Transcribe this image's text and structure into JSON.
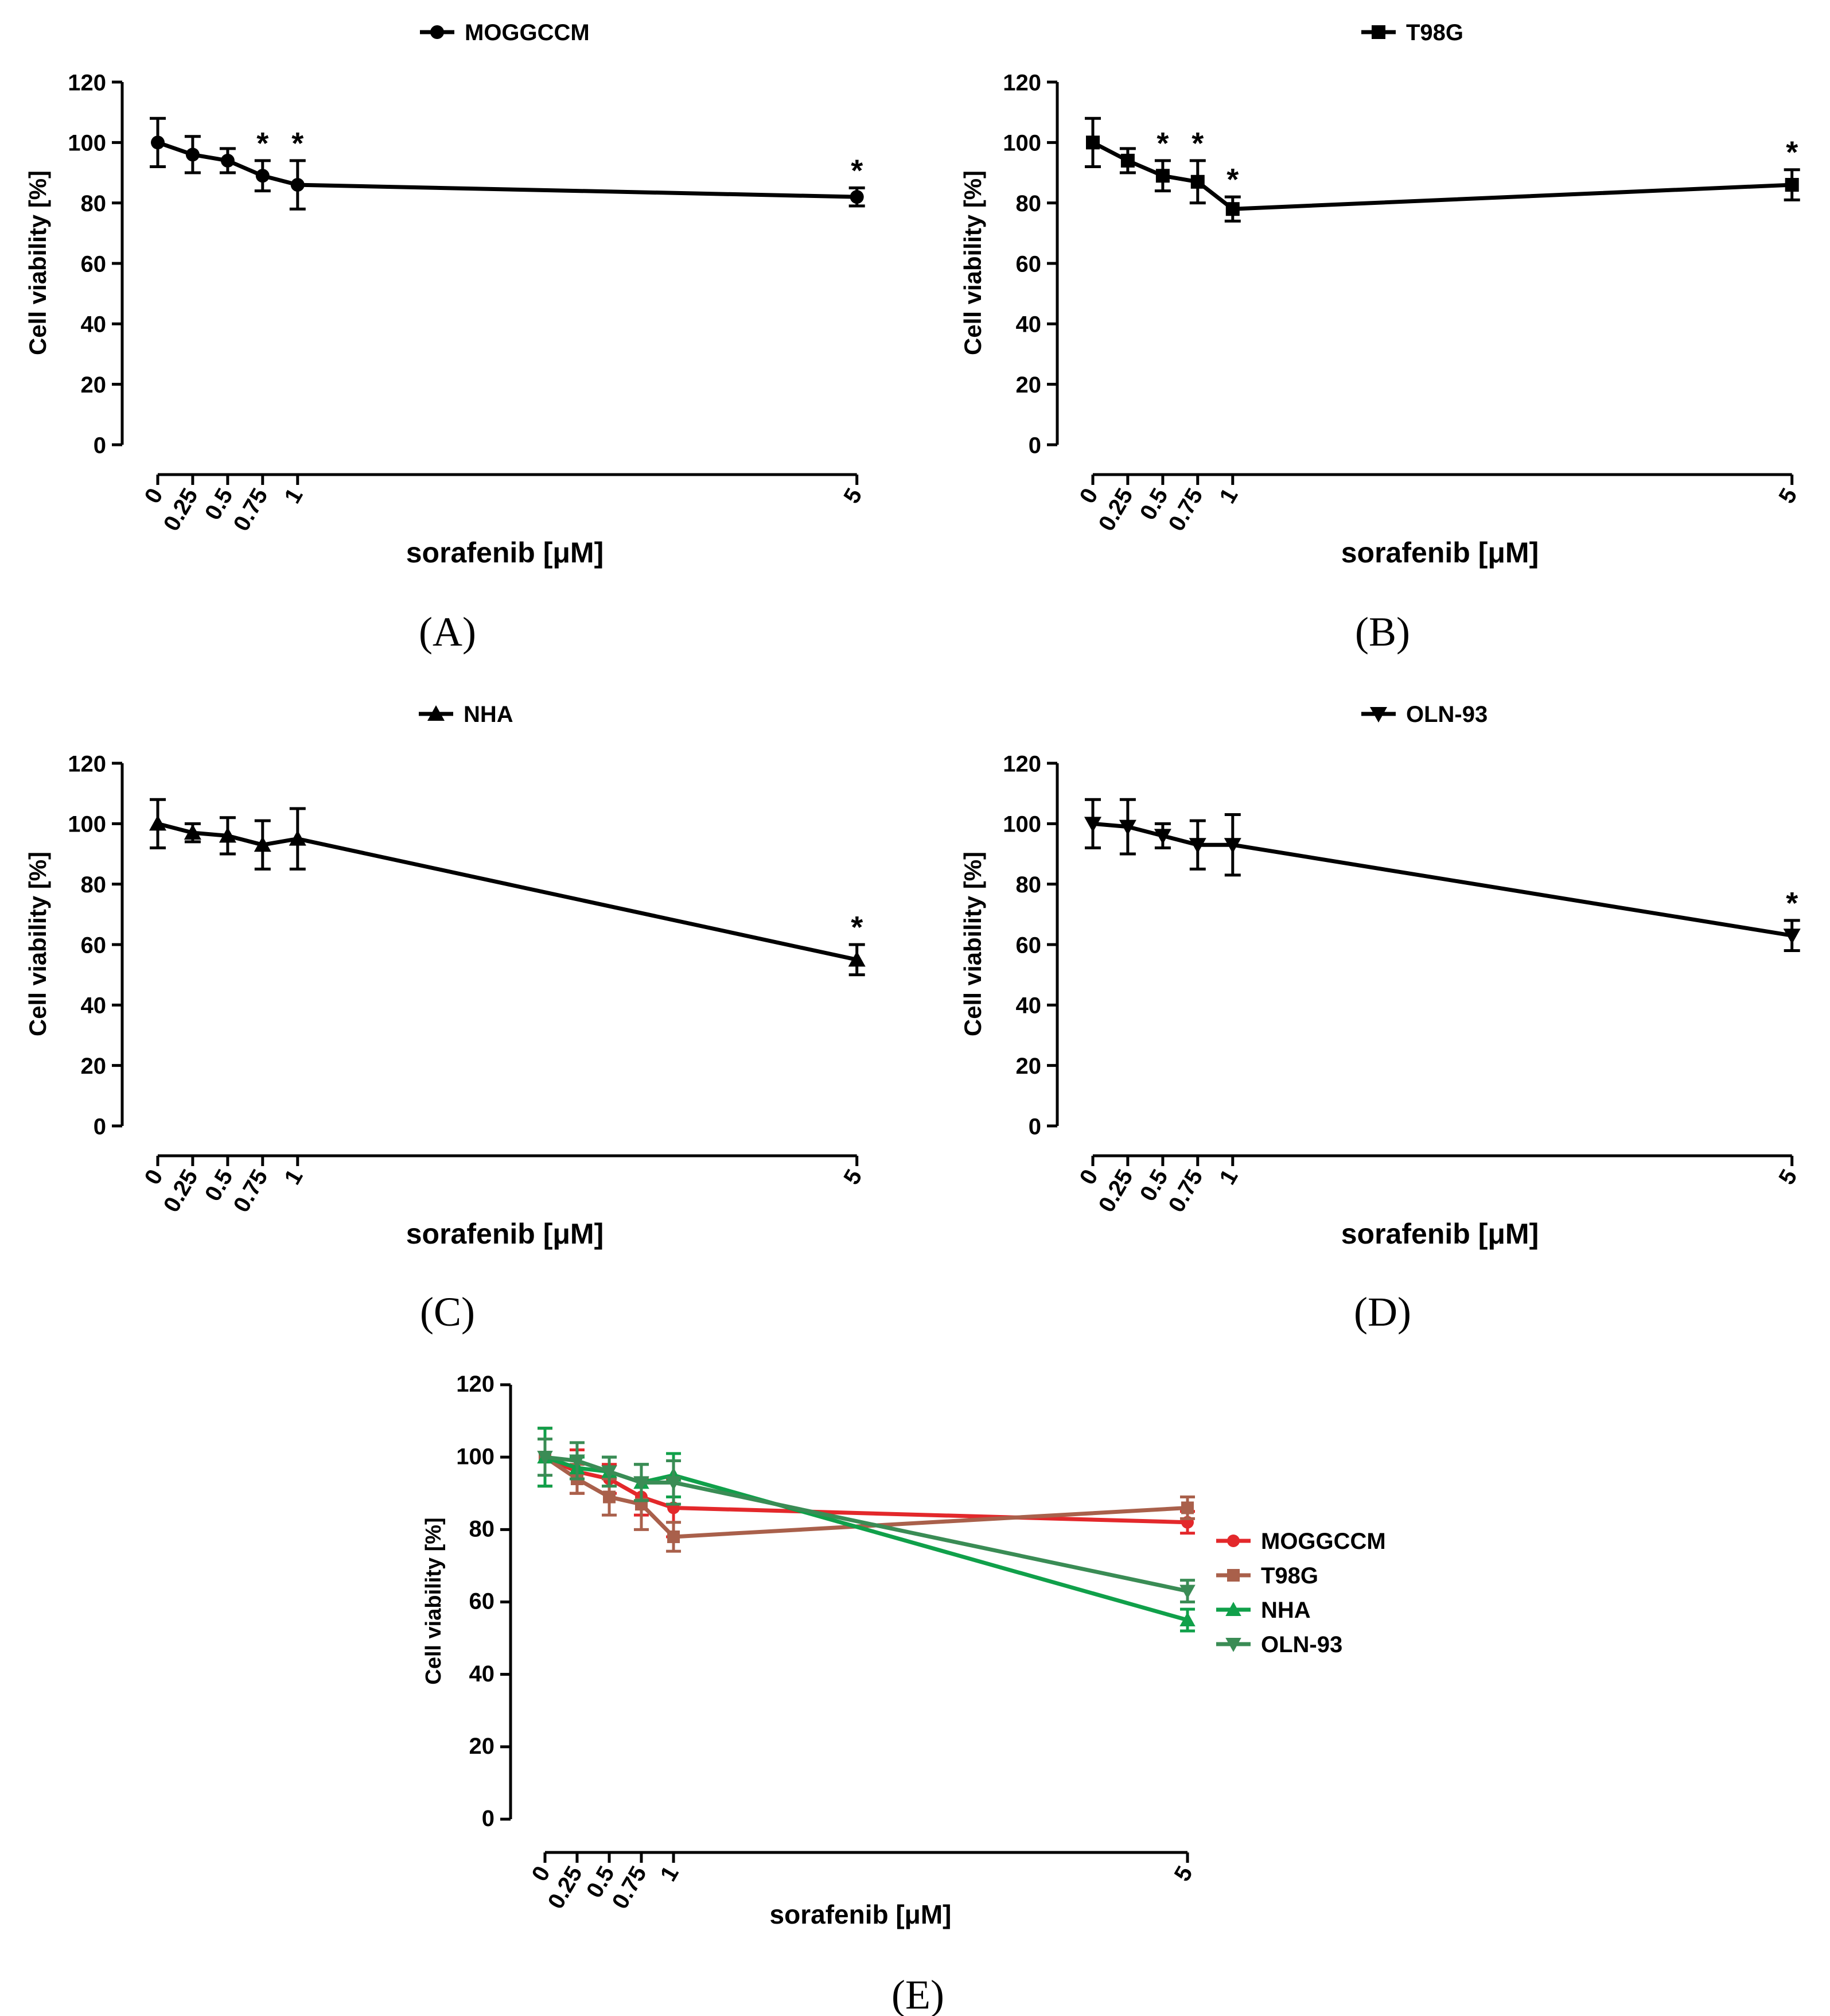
{
  "chart_data": [
    {
      "panel": "(A)",
      "type": "line",
      "title": "",
      "xlabel": "sorafenib [μM]",
      "ylabel": "Cell viability [%]",
      "x_tick_labels": [
        "0",
        "0.25",
        "0.5",
        "0.75",
        "1",
        "5"
      ],
      "x": [
        0,
        0.25,
        0.5,
        0.75,
        1,
        5
      ],
      "ylim": [
        0,
        120
      ],
      "y_ticks": [
        0,
        20,
        40,
        60,
        80,
        100,
        120
      ],
      "legend_position": "top-center",
      "series": [
        {
          "name": "MOGGCCM",
          "marker": "circle",
          "color": "#000000",
          "values": [
            100,
            96,
            94,
            89,
            86,
            82
          ],
          "error": [
            8,
            6,
            4,
            5,
            8,
            3
          ],
          "significant": [
            false,
            false,
            false,
            true,
            true,
            true
          ]
        }
      ]
    },
    {
      "panel": "(B)",
      "type": "line",
      "title": "",
      "xlabel": "sorafenib [μM]",
      "ylabel": "Cell viability [%]",
      "x_tick_labels": [
        "0",
        "0.25",
        "0.5",
        "0.75",
        "1",
        "5"
      ],
      "x": [
        0,
        0.25,
        0.5,
        0.75,
        1,
        5
      ],
      "ylim": [
        0,
        120
      ],
      "y_ticks": [
        0,
        20,
        40,
        60,
        80,
        100,
        120
      ],
      "legend_position": "top-center",
      "series": [
        {
          "name": "T98G",
          "marker": "square",
          "color": "#000000",
          "values": [
            100,
            94,
            89,
            87,
            78,
            86
          ],
          "error": [
            8,
            4,
            5,
            7,
            4,
            5
          ],
          "significant": [
            false,
            false,
            true,
            true,
            true,
            true
          ]
        }
      ]
    },
    {
      "panel": "(C)",
      "type": "line",
      "title": "",
      "xlabel": "sorafenib [μM]",
      "ylabel": "Cell viability [%]",
      "x_tick_labels": [
        "0",
        "0.25",
        "0.5",
        "0.75",
        "1",
        "5"
      ],
      "x": [
        0,
        0.25,
        0.5,
        0.75,
        1,
        5
      ],
      "ylim": [
        0,
        120
      ],
      "y_ticks": [
        0,
        20,
        40,
        60,
        80,
        100,
        120
      ],
      "legend_position": "top-center",
      "series": [
        {
          "name": "NHA",
          "marker": "triangle-up",
          "color": "#000000",
          "values": [
            100,
            97,
            96,
            93,
            95,
            55
          ],
          "error": [
            8,
            3,
            6,
            8,
            10,
            5
          ],
          "significant": [
            false,
            false,
            false,
            false,
            false,
            true
          ]
        }
      ]
    },
    {
      "panel": "(D)",
      "type": "line",
      "title": "",
      "xlabel": "sorafenib [μM]",
      "ylabel": "Cell viability [%]",
      "x_tick_labels": [
        "0",
        "0.25",
        "0.5",
        "0.75",
        "1",
        "5"
      ],
      "x": [
        0,
        0.25,
        0.5,
        0.75,
        1,
        5
      ],
      "ylim": [
        0,
        120
      ],
      "y_ticks": [
        0,
        20,
        40,
        60,
        80,
        100,
        120
      ],
      "legend_position": "top-center",
      "series": [
        {
          "name": "OLN-93",
          "marker": "triangle-down",
          "color": "#000000",
          "values": [
            100,
            99,
            96,
            93,
            93,
            63
          ],
          "error": [
            8,
            9,
            4,
            8,
            10,
            5
          ],
          "significant": [
            false,
            false,
            false,
            false,
            false,
            true
          ]
        }
      ]
    },
    {
      "panel": "(E)",
      "type": "line",
      "title": "",
      "xlabel": "sorafenib [μM]",
      "ylabel": "Cell viability [%]",
      "x_tick_labels": [
        "0",
        "0.25",
        "0.5",
        "0.75",
        "1",
        "5"
      ],
      "x": [
        0,
        0.25,
        0.5,
        0.75,
        1,
        5
      ],
      "ylim": [
        0,
        120
      ],
      "y_ticks": [
        0,
        20,
        40,
        60,
        80,
        100,
        120
      ],
      "legend_position": "right",
      "series": [
        {
          "name": "MOGGCCM",
          "marker": "circle",
          "color": "#e3282b",
          "values": [
            100,
            96,
            94,
            89,
            86,
            82
          ],
          "error": [
            8,
            6,
            4,
            5,
            8,
            3
          ]
        },
        {
          "name": "T98G",
          "marker": "square",
          "color": "#a9604b",
          "values": [
            100,
            94,
            89,
            87,
            78,
            86
          ],
          "error": [
            8,
            4,
            5,
            7,
            4,
            3
          ]
        },
        {
          "name": "NHA",
          "marker": "triangle-up",
          "color": "#10a04a",
          "values": [
            100,
            97,
            96,
            93,
            95,
            55
          ],
          "error": [
            8,
            3,
            4,
            5,
            6,
            3
          ]
        },
        {
          "name": "OLN-93",
          "marker": "triangle-down",
          "color": "#3a8c55",
          "values": [
            100,
            99,
            96,
            93,
            93,
            63
          ],
          "error": [
            5,
            5,
            4,
            5,
            6,
            3
          ]
        }
      ]
    }
  ]
}
